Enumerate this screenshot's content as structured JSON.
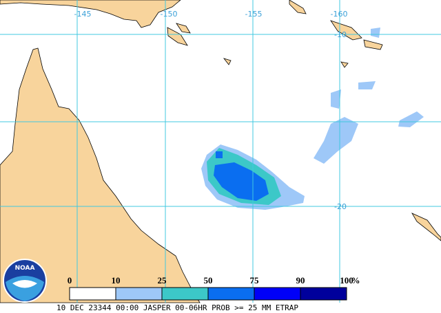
{
  "map": {
    "lon_labels": [
      "-145",
      "-150",
      "-155",
      "-160"
    ],
    "lat_labels": [
      "-10",
      "-20"
    ]
  },
  "legend": {
    "ticks": [
      0,
      10,
      25,
      50,
      75,
      90,
      100
    ],
    "unit": "%",
    "colors": [
      "#ffffff",
      "#9ec8f8",
      "#3cc8c8",
      "#0a6ef0",
      "#0000f8",
      "#00009c"
    ]
  },
  "logo": "NOAA",
  "footer": "10 DEC 23344 00:00 JASPER 00-06HR PROB >= 25 MM ETRAP"
}
